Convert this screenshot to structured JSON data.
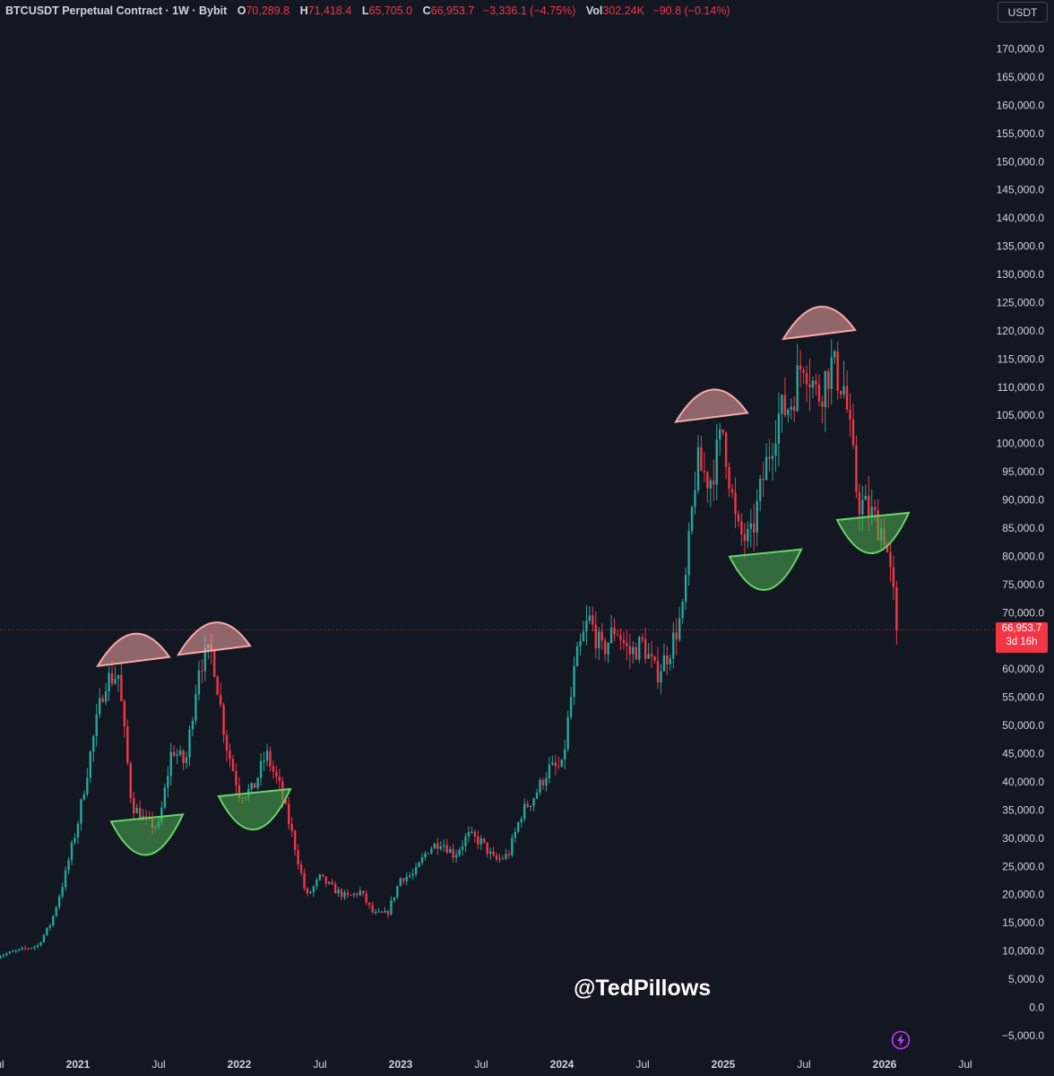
{
  "legend": {
    "symbol": "BTCUSDT Perpetual Contract · 1W · Bybit",
    "open_label": "O",
    "open": "70,289.8",
    "high_label": "H",
    "high": "71,418.4",
    "low_label": "L",
    "low": "65,705.0",
    "close_label": "C",
    "close": "66,953.7",
    "change": "−3,336.1 (−4.75%)",
    "vol_label": "Vol",
    "vol": "302.24K",
    "vol_change": "−90.8 (−0.14%)"
  },
  "currency_button": "USDT",
  "watermark": "@TedPillows",
  "price_tag": {
    "price": "66,953.7",
    "countdown": "3d 16h"
  },
  "icons": {
    "bolt": "lightning-bolt-icon"
  },
  "colors": {
    "background": "#131722",
    "up": "#26a69a",
    "down": "#f23645",
    "top_arc": "#f7a8a8",
    "bottom_arc": "#4caf50"
  },
  "chart_data": {
    "type": "candlestick",
    "title": "",
    "timeframe": "1W",
    "ylim": [
      -5000,
      175000
    ],
    "y_ticks": [
      -5000,
      0,
      5000,
      10000,
      15000,
      20000,
      25000,
      30000,
      35000,
      40000,
      45000,
      50000,
      55000,
      60000,
      65000,
      70000,
      75000,
      80000,
      85000,
      90000,
      95000,
      100000,
      105000,
      110000,
      115000,
      120000,
      125000,
      130000,
      135000,
      140000,
      145000,
      150000,
      155000,
      160000,
      165000,
      170000
    ],
    "y_tick_labels": [
      "−5,000.0",
      "0.0",
      "5,000.0",
      "10,000.0",
      "15,000.0",
      "20,000.0",
      "25,000.0",
      "30,000.0",
      "35,000.0",
      "40,000.0",
      "45,000.0",
      "50,000.0",
      "55,000.0",
      "60,000.0",
      "65,000.0",
      "70,000.0",
      "75,000.0",
      "80,000.0",
      "85,000.0",
      "90,000.0",
      "95,000.0",
      "100,000.0",
      "105,000.0",
      "110,000.0",
      "115,000.0",
      "120,000.0",
      "125,000.0",
      "130,000.0",
      "135,000.0",
      "140,000.0",
      "145,000.0",
      "150,000.0",
      "155,000.0",
      "160,000.0",
      "165,000.0",
      "170,000.0"
    ],
    "x_ticks": [
      {
        "t": "2020-07",
        "label": "Jul"
      },
      {
        "t": "2021-01",
        "label": "2021"
      },
      {
        "t": "2021-07",
        "label": "Jul"
      },
      {
        "t": "2022-01",
        "label": "2022"
      },
      {
        "t": "2022-07",
        "label": "Jul"
      },
      {
        "t": "2023-01",
        "label": "2023"
      },
      {
        "t": "2023-07",
        "label": "Jul"
      },
      {
        "t": "2024-01",
        "label": "2024"
      },
      {
        "t": "2024-07",
        "label": "Jul"
      },
      {
        "t": "2025-01",
        "label": "2025"
      },
      {
        "t": "2025-07",
        "label": "Jul"
      },
      {
        "t": "2026-01",
        "label": "2026"
      },
      {
        "t": "2026-07",
        "label": "Jul"
      }
    ],
    "last_price": 66953.7,
    "price_path": [
      [
        "2020-07",
        9100
      ],
      [
        "2020-10",
        11000
      ],
      [
        "2020-11",
        15000
      ],
      [
        "2020-12",
        23000
      ],
      [
        "2021-01",
        33000
      ],
      [
        "2021-02",
        46000
      ],
      [
        "2021-03",
        58000
      ],
      [
        "2021-04",
        59000
      ],
      [
        "2021-05",
        36000
      ],
      [
        "2021-06",
        33000
      ],
      [
        "2021-07",
        32000
      ],
      [
        "2021-08",
        46000
      ],
      [
        "2021-09",
        43000
      ],
      [
        "2021-10",
        61000
      ],
      [
        "2021-11",
        63000
      ],
      [
        "2021-12",
        47000
      ],
      [
        "2022-01",
        38000
      ],
      [
        "2022-02",
        38500
      ],
      [
        "2022-03",
        45000
      ],
      [
        "2022-04",
        39000
      ],
      [
        "2022-05",
        30000
      ],
      [
        "2022-06",
        19500
      ],
      [
        "2022-07",
        23000
      ],
      [
        "2022-08",
        21000
      ],
      [
        "2022-09",
        19500
      ],
      [
        "2022-10",
        20500
      ],
      [
        "2022-11",
        16500
      ],
      [
        "2022-12",
        16600
      ],
      [
        "2023-01",
        23000
      ],
      [
        "2023-02",
        23500
      ],
      [
        "2023-03",
        28000
      ],
      [
        "2023-04",
        29500
      ],
      [
        "2023-05",
        27000
      ],
      [
        "2023-06",
        30500
      ],
      [
        "2023-07",
        29300
      ],
      [
        "2023-08",
        26000
      ],
      [
        "2023-09",
        27000
      ],
      [
        "2023-10",
        34500
      ],
      [
        "2023-11",
        37700
      ],
      [
        "2023-12",
        42300
      ],
      [
        "2024-01",
        42500
      ],
      [
        "2024-02",
        61000
      ],
      [
        "2024-03",
        69000
      ],
      [
        "2024-04",
        63000
      ],
      [
        "2024-05",
        67500
      ],
      [
        "2024-06",
        62700
      ],
      [
        "2024-07",
        64600
      ],
      [
        "2024-08",
        59000
      ],
      [
        "2024-09",
        63300
      ],
      [
        "2024-10",
        70200
      ],
      [
        "2024-11",
        96400
      ],
      [
        "2024-12",
        93400
      ],
      [
        "2025-01",
        102400
      ],
      [
        "2025-02",
        84300
      ],
      [
        "2025-03",
        82500
      ],
      [
        "2025-04",
        94200
      ],
      [
        "2025-05",
        104600
      ],
      [
        "2025-06",
        107100
      ],
      [
        "2025-07",
        115700
      ],
      [
        "2025-08",
        108200
      ],
      [
        "2025-09",
        114000
      ],
      [
        "2025-10",
        110000
      ],
      [
        "2025-11",
        90000
      ],
      [
        "2025-12",
        87500
      ],
      [
        "2026-01",
        84000
      ],
      [
        "2026-02",
        66953.7
      ]
    ],
    "annotations": [
      {
        "type": "top-arc",
        "center": "2021-05",
        "price": 61500
      },
      {
        "type": "bottom-arc",
        "center": "2021-06",
        "price": 32000
      },
      {
        "type": "top-arc",
        "center": "2021-11",
        "price": 63500
      },
      {
        "type": "bottom-arc",
        "center": "2022-02",
        "price": 36500
      },
      {
        "type": "top-arc",
        "center": "2024-12",
        "price": 104800
      },
      {
        "type": "bottom-arc",
        "center": "2025-04",
        "price": 79000
      },
      {
        "type": "top-arc",
        "center": "2025-08",
        "price": 119500
      },
      {
        "type": "bottom-arc",
        "center": "2025-12",
        "price": 85500
      }
    ]
  }
}
